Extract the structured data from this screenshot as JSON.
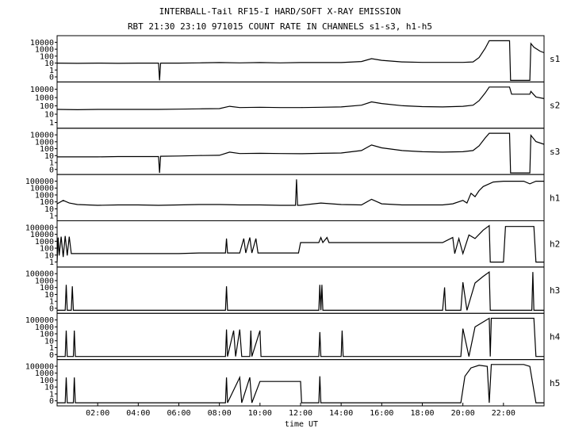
{
  "chart_data": {
    "type": "line",
    "title": "INTERBALL-Tail RF15-I HARD/SOFT X-RAY EMISSION",
    "subtitle": "RBT 21:30 23:10 971015  COUNT RATE IN CHANNELS s1-s3, h1-h5",
    "xlabel": "time UT",
    "x_ticks": [
      "02:00",
      "04:00",
      "06:00",
      "08:00",
      "10:00",
      "12:00",
      "14:00",
      "16:00",
      "18:00",
      "20:00",
      "22:00"
    ],
    "xlim": [
      0,
      24
    ],
    "y_scale": "log",
    "grid": false,
    "panels": [
      {
        "name": "s1",
        "y_ticks": [
          "10000",
          "1000",
          "100",
          "10",
          "1",
          "0"
        ],
        "series": [
          [
            0.0,
            15
          ],
          [
            1.0,
            14
          ],
          [
            2.0,
            15
          ],
          [
            3.0,
            14
          ],
          [
            4.0,
            15
          ],
          [
            5.0,
            15
          ],
          [
            5.05,
            0.2
          ],
          [
            5.1,
            15
          ],
          [
            6.0,
            15
          ],
          [
            7.0,
            16
          ],
          [
            8.0,
            17
          ],
          [
            9.0,
            16
          ],
          [
            10.0,
            17
          ],
          [
            11.0,
            16
          ],
          [
            12.0,
            17
          ],
          [
            13.0,
            17
          ],
          [
            14.0,
            17
          ],
          [
            15.0,
            22
          ],
          [
            15.5,
            45
          ],
          [
            16.0,
            30
          ],
          [
            17.0,
            20
          ],
          [
            18.0,
            18
          ],
          [
            19.0,
            18
          ],
          [
            20.0,
            18
          ],
          [
            20.5,
            20
          ],
          [
            20.8,
            60
          ],
          [
            21.1,
            600
          ],
          [
            21.3,
            4000
          ],
          [
            21.7,
            4000
          ],
          [
            22.3,
            4000
          ],
          [
            22.35,
            0.2
          ],
          [
            23.3,
            0.2
          ],
          [
            23.35,
            2000
          ],
          [
            23.5,
            800
          ],
          [
            23.8,
            300
          ],
          [
            24.0,
            200
          ]
        ]
      },
      {
        "name": "s2",
        "y_ticks": [
          "10000",
          "1000",
          "100",
          "10",
          "1"
        ],
        "series": [
          [
            0.0,
            14
          ],
          [
            1.0,
            13
          ],
          [
            2.0,
            14
          ],
          [
            3.0,
            14
          ],
          [
            4.0,
            14
          ],
          [
            5.0,
            14
          ],
          [
            6.0,
            15
          ],
          [
            7.0,
            16
          ],
          [
            8.0,
            17
          ],
          [
            8.5,
            30
          ],
          [
            9.0,
            22
          ],
          [
            10.0,
            24
          ],
          [
            11.0,
            22
          ],
          [
            12.0,
            22
          ],
          [
            13.0,
            24
          ],
          [
            14.0,
            26
          ],
          [
            15.0,
            40
          ],
          [
            15.5,
            90
          ],
          [
            16.0,
            60
          ],
          [
            17.0,
            35
          ],
          [
            18.0,
            28
          ],
          [
            19.0,
            26
          ],
          [
            20.0,
            30
          ],
          [
            20.5,
            40
          ],
          [
            20.8,
            120
          ],
          [
            21.1,
            800
          ],
          [
            21.3,
            3500
          ],
          [
            21.7,
            3500
          ],
          [
            22.3,
            3500
          ],
          [
            22.4,
            600
          ],
          [
            23.3,
            600
          ],
          [
            23.35,
            1200
          ],
          [
            23.6,
            300
          ],
          [
            24.0,
            200
          ]
        ]
      },
      {
        "name": "s3",
        "y_ticks": [
          "10000",
          "1000",
          "100",
          "10",
          "1",
          "0"
        ],
        "series": [
          [
            0.0,
            12
          ],
          [
            1.0,
            12
          ],
          [
            2.0,
            12
          ],
          [
            3.0,
            13
          ],
          [
            4.0,
            13
          ],
          [
            5.0,
            13
          ],
          [
            5.05,
            0.2
          ],
          [
            5.1,
            14
          ],
          [
            6.0,
            15
          ],
          [
            7.0,
            17
          ],
          [
            8.0,
            18
          ],
          [
            8.5,
            40
          ],
          [
            9.0,
            28
          ],
          [
            10.0,
            30
          ],
          [
            11.0,
            28
          ],
          [
            12.0,
            27
          ],
          [
            13.0,
            30
          ],
          [
            14.0,
            32
          ],
          [
            15.0,
            60
          ],
          [
            15.5,
            250
          ],
          [
            16.0,
            120
          ],
          [
            17.0,
            60
          ],
          [
            18.0,
            45
          ],
          [
            19.0,
            40
          ],
          [
            20.0,
            45
          ],
          [
            20.5,
            60
          ],
          [
            20.8,
            200
          ],
          [
            21.1,
            1500
          ],
          [
            21.3,
            5000
          ],
          [
            22.3,
            5000
          ],
          [
            22.35,
            0.2
          ],
          [
            23.3,
            0.2
          ],
          [
            23.35,
            3000
          ],
          [
            23.6,
            600
          ],
          [
            24.0,
            300
          ]
        ]
      },
      {
        "name": "h1",
        "y_ticks": [
          "100000",
          "10000",
          "1000",
          "100",
          "10",
          "1"
        ],
        "series": [
          [
            0.0,
            12
          ],
          [
            0.3,
            30
          ],
          [
            0.6,
            15
          ],
          [
            1.0,
            10
          ],
          [
            2.0,
            8
          ],
          [
            3.0,
            9
          ],
          [
            4.0,
            9
          ],
          [
            5.0,
            8
          ],
          [
            6.0,
            9
          ],
          [
            7.0,
            10
          ],
          [
            8.0,
            10
          ],
          [
            9.0,
            9
          ],
          [
            10.0,
            9
          ],
          [
            11.0,
            8
          ],
          [
            11.75,
            8
          ],
          [
            11.8,
            8000
          ],
          [
            11.85,
            8
          ],
          [
            12.0,
            8
          ],
          [
            13.0,
            15
          ],
          [
            14.0,
            10
          ],
          [
            15.0,
            9
          ],
          [
            15.5,
            40
          ],
          [
            16.0,
            12
          ],
          [
            17.0,
            9
          ],
          [
            18.0,
            9
          ],
          [
            19.0,
            9
          ],
          [
            19.5,
            12
          ],
          [
            20.0,
            30
          ],
          [
            20.2,
            15
          ],
          [
            20.4,
            200
          ],
          [
            20.6,
            80
          ],
          [
            20.8,
            400
          ],
          [
            21.0,
            1200
          ],
          [
            21.5,
            4000
          ],
          [
            22.0,
            5000
          ],
          [
            22.5,
            5000
          ],
          [
            23.0,
            5000
          ],
          [
            23.3,
            2500
          ],
          [
            23.6,
            5000
          ],
          [
            24.0,
            5000
          ]
        ]
      },
      {
        "name": "h2",
        "y_ticks": [
          "100000",
          "10000",
          "1000",
          "100",
          "10",
          "1"
        ],
        "series": [
          [
            0.0,
            0.5
          ],
          [
            0.05,
            400
          ],
          [
            0.1,
            3
          ],
          [
            0.2,
            500
          ],
          [
            0.3,
            2
          ],
          [
            0.4,
            600
          ],
          [
            0.5,
            3
          ],
          [
            0.6,
            500
          ],
          [
            0.7,
            5
          ],
          [
            1.0,
            5
          ],
          [
            3.0,
            5
          ],
          [
            5.0,
            5
          ],
          [
            6.0,
            5
          ],
          [
            7.0,
            6
          ],
          [
            8.0,
            6
          ],
          [
            8.3,
            6
          ],
          [
            8.35,
            300
          ],
          [
            8.4,
            6
          ],
          [
            9.0,
            6
          ],
          [
            9.2,
            300
          ],
          [
            9.3,
            6
          ],
          [
            9.5,
            400
          ],
          [
            9.6,
            6
          ],
          [
            9.8,
            300
          ],
          [
            9.9,
            6
          ],
          [
            10.0,
            6
          ],
          [
            11.0,
            6
          ],
          [
            11.9,
            6
          ],
          [
            12.0,
            100
          ],
          [
            12.9,
            100
          ],
          [
            13.0,
            400
          ],
          [
            13.1,
            100
          ],
          [
            13.3,
            400
          ],
          [
            13.4,
            100
          ],
          [
            14.0,
            100
          ],
          [
            16.0,
            100
          ],
          [
            18.0,
            100
          ],
          [
            19.0,
            100
          ],
          [
            19.5,
            400
          ],
          [
            19.6,
            5
          ],
          [
            19.8,
            300
          ],
          [
            20.0,
            5
          ],
          [
            20.3,
            800
          ],
          [
            20.6,
            300
          ],
          [
            21.0,
            3000
          ],
          [
            21.3,
            10000
          ],
          [
            21.35,
            0.5
          ],
          [
            22.0,
            0.5
          ],
          [
            22.1,
            8000
          ],
          [
            23.0,
            8000
          ],
          [
            23.5,
            8000
          ],
          [
            23.6,
            0.5
          ],
          [
            24.0,
            0.5
          ]
        ]
      },
      {
        "name": "h3",
        "y_ticks": [
          "100000",
          "1000",
          "100",
          "10",
          "1",
          "0"
        ],
        "series": [
          [
            0.0,
            0.3
          ],
          [
            0.4,
            0.3
          ],
          [
            0.45,
            300
          ],
          [
            0.5,
            0.3
          ],
          [
            0.7,
            0.3
          ],
          [
            0.75,
            200
          ],
          [
            0.8,
            0.3
          ],
          [
            8.0,
            0.3
          ],
          [
            8.3,
            0.3
          ],
          [
            8.35,
            200
          ],
          [
            8.4,
            0.3
          ],
          [
            12.9,
            0.3
          ],
          [
            12.95,
            300
          ],
          [
            13.0,
            0.3
          ],
          [
            13.05,
            300
          ],
          [
            13.1,
            0.3
          ],
          [
            19.0,
            0.3
          ],
          [
            19.1,
            150
          ],
          [
            19.15,
            0.3
          ],
          [
            19.9,
            0.3
          ],
          [
            20.0,
            600
          ],
          [
            20.2,
            0.3
          ],
          [
            20.6,
            500
          ],
          [
            21.0,
            3000
          ],
          [
            21.3,
            10000
          ],
          [
            21.35,
            0.3
          ],
          [
            23.4,
            0.3
          ],
          [
            23.45,
            10000
          ],
          [
            23.5,
            0.3
          ],
          [
            24.0,
            0.3
          ]
        ]
      },
      {
        "name": "h4",
        "y_ticks": [
          "100000",
          "1000",
          "100",
          "10",
          "1",
          "0"
        ],
        "series": [
          [
            0.0,
            0.3
          ],
          [
            0.4,
            0.3
          ],
          [
            0.45,
            300
          ],
          [
            0.5,
            0.3
          ],
          [
            0.8,
            0.3
          ],
          [
            0.85,
            300
          ],
          [
            0.9,
            0.3
          ],
          [
            8.0,
            0.3
          ],
          [
            8.3,
            0.3
          ],
          [
            8.35,
            400
          ],
          [
            8.4,
            0.3
          ],
          [
            8.7,
            300
          ],
          [
            8.8,
            0.3
          ],
          [
            9.0,
            400
          ],
          [
            9.1,
            0.3
          ],
          [
            9.5,
            0.3
          ],
          [
            9.55,
            300
          ],
          [
            9.6,
            0.3
          ],
          [
            10.0,
            300
          ],
          [
            10.05,
            0.3
          ],
          [
            12.9,
            0.3
          ],
          [
            12.95,
            200
          ],
          [
            13.0,
            0.3
          ],
          [
            14.0,
            0.3
          ],
          [
            14.05,
            300
          ],
          [
            14.1,
            0.3
          ],
          [
            19.9,
            0.3
          ],
          [
            20.0,
            500
          ],
          [
            20.3,
            0.3
          ],
          [
            20.6,
            800
          ],
          [
            21.0,
            3000
          ],
          [
            21.3,
            8000
          ],
          [
            21.35,
            0.3
          ],
          [
            21.4,
            8000
          ],
          [
            22.0,
            8000
          ],
          [
            23.0,
            8000
          ],
          [
            23.5,
            8000
          ],
          [
            23.6,
            0.3
          ],
          [
            24.0,
            0.3
          ]
        ]
      },
      {
        "name": "h5",
        "y_ticks": [
          "100000",
          "1000",
          "100",
          "10",
          "1",
          "0"
        ],
        "series": [
          [
            0.0,
            0.3
          ],
          [
            0.4,
            0.3
          ],
          [
            0.45,
            300
          ],
          [
            0.5,
            0.3
          ],
          [
            0.8,
            0.3
          ],
          [
            0.85,
            300
          ],
          [
            0.9,
            0.3
          ],
          [
            8.0,
            0.3
          ],
          [
            8.3,
            0.3
          ],
          [
            8.35,
            300
          ],
          [
            8.4,
            0.3
          ],
          [
            9.0,
            300
          ],
          [
            9.1,
            0.3
          ],
          [
            9.5,
            300
          ],
          [
            9.6,
            0.3
          ],
          [
            10.0,
            100
          ],
          [
            11.0,
            100
          ],
          [
            12.0,
            100
          ],
          [
            12.05,
            0.3
          ],
          [
            12.9,
            0.3
          ],
          [
            12.95,
            400
          ],
          [
            13.0,
            0.3
          ],
          [
            19.9,
            0.3
          ],
          [
            20.1,
            400
          ],
          [
            20.4,
            4000
          ],
          [
            20.8,
            8000
          ],
          [
            21.2,
            6000
          ],
          [
            21.3,
            0.3
          ],
          [
            21.4,
            10000
          ],
          [
            22.0,
            10000
          ],
          [
            23.0,
            10000
          ],
          [
            23.3,
            6000
          ],
          [
            23.6,
            0.3
          ],
          [
            24.0,
            0.3
          ]
        ]
      }
    ]
  }
}
